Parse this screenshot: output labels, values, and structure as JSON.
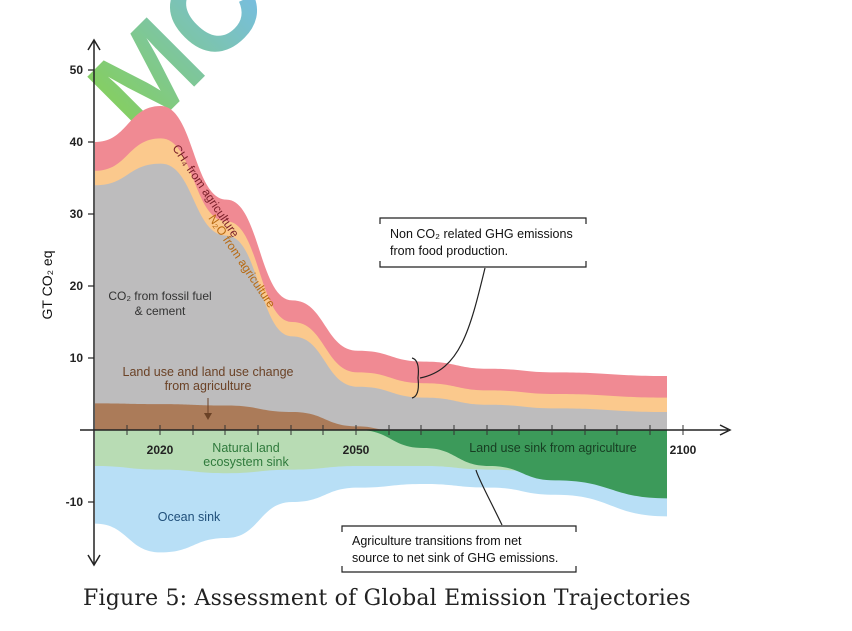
{
  "chart_data": {
    "type": "area",
    "ylabel": "GT CO₂ eq",
    "yticks": [
      50,
      40,
      30,
      20,
      10,
      -10
    ],
    "xticks": [
      2020,
      2050,
      2100
    ],
    "xlim": [
      2010,
      2097
    ],
    "ylim": [
      -18,
      55
    ],
    "series_labels": {
      "ch4": "CH₄ from agriculture",
      "n2o": "N₂O from agriculture",
      "fossil_line1": "CO₂ from fossil fuel",
      "fossil_line2": "& cement",
      "landuse_line1": "Land use and land use change",
      "landuse_line2": "from agriculture",
      "natural_line1": "Natural land",
      "natural_line2": "ecosystem sink",
      "ocean": "Ocean sink",
      "ag_sink": "Land use sink from agriculture"
    },
    "series": [
      {
        "key": "ch4",
        "color": "#f08a93",
        "x": [
          2010,
          2020,
          2030,
          2040,
          2050,
          2060,
          2070,
          2080,
          2097
        ],
        "y": [
          40,
          45,
          32,
          18,
          11,
          9.5,
          8.5,
          8,
          7.5
        ]
      },
      {
        "key": "n2o",
        "color": "#fbc98d",
        "x": [
          2010,
          2020,
          2030,
          2040,
          2050,
          2060,
          2070,
          2080,
          2097
        ],
        "y": [
          36,
          40.5,
          29,
          15,
          8,
          6.5,
          5.5,
          5,
          4.5
        ]
      },
      {
        "key": "fossil",
        "color": "#b9bcc0",
        "x": [
          2010,
          2020,
          2030,
          2040,
          2050,
          2060,
          2070,
          2080,
          2097
        ],
        "y": [
          34,
          37,
          27,
          13,
          6,
          4.5,
          3.5,
          3,
          2.5
        ]
      },
      {
        "key": "landuse",
        "color": "#a9734e",
        "x": [
          2010,
          2020,
          2030,
          2040,
          2050,
          2055
        ],
        "y": [
          3.7,
          3.6,
          3.4,
          2.5,
          0.5,
          0
        ]
      },
      {
        "key": "natural",
        "color": "#b7dbb0",
        "x": [
          2010,
          2020,
          2030,
          2040,
          2050,
          2060,
          2070,
          2080,
          2097
        ],
        "y": [
          -5,
          -5.5,
          -6,
          -5.5,
          -5,
          -5,
          -5.5,
          -6,
          -7
        ]
      },
      {
        "key": "ag_sink",
        "color": "#3c9a5a",
        "x": [
          2050,
          2060,
          2070,
          2080,
          2097
        ],
        "y": [
          0,
          -2.5,
          -5,
          -7,
          -9.5
        ]
      },
      {
        "key": "ocean",
        "color": "#b8dff6",
        "x": [
          2010,
          2020,
          2030,
          2040,
          2050,
          2060,
          2070,
          2080,
          2097
        ],
        "y": [
          -13,
          -17,
          -15,
          -10,
          -8,
          -7.5,
          -8,
          -9,
          -12
        ]
      }
    ],
    "annotations": {
      "non_co2_line1": "Non CO₂ related GHG emissions",
      "non_co2_line2": "from food production.",
      "transition_line1": "Agriculture transitions from net",
      "transition_line2": "source to net sink of GHG emissions."
    }
  },
  "caption": "Figure 5: Assessment of Global Emission Trajectories",
  "watermark": "MC"
}
